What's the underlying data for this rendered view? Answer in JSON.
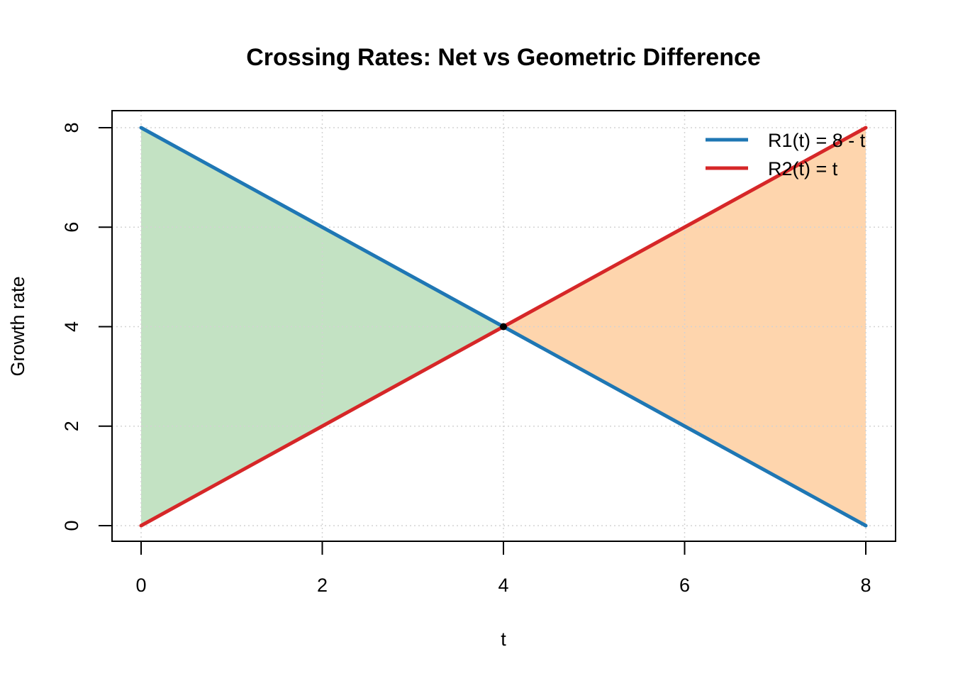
{
  "chart_data": {
    "type": "line",
    "title": "Crossing Rates: Net vs Geometric Difference",
    "xlabel": "t",
    "ylabel": "Growth rate",
    "xlim": [
      0,
      8
    ],
    "ylim": [
      0,
      8
    ],
    "x_ticks": [
      0,
      2,
      4,
      6,
      8
    ],
    "y_ticks": [
      0,
      2,
      4,
      6,
      8
    ],
    "grid": true,
    "legend_position": "top-right",
    "series": [
      {
        "name": "R1(t) = 8 - t",
        "color": "#1f77b4",
        "x": [
          0,
          2,
          4,
          6,
          8
        ],
        "y": [
          8,
          6,
          4,
          2,
          0
        ]
      },
      {
        "name": "R2(t) = t",
        "color": "#d62728",
        "x": [
          0,
          2,
          4,
          6,
          8
        ],
        "y": [
          0,
          2,
          4,
          6,
          8
        ]
      }
    ],
    "fills": [
      {
        "from_x": 0,
        "to_x": 4,
        "color": "#c3e2c3"
      },
      {
        "from_x": 4,
        "to_x": 8,
        "color": "#fed5ad"
      }
    ],
    "crossing_point": {
      "x": 4,
      "y": 4
    }
  }
}
